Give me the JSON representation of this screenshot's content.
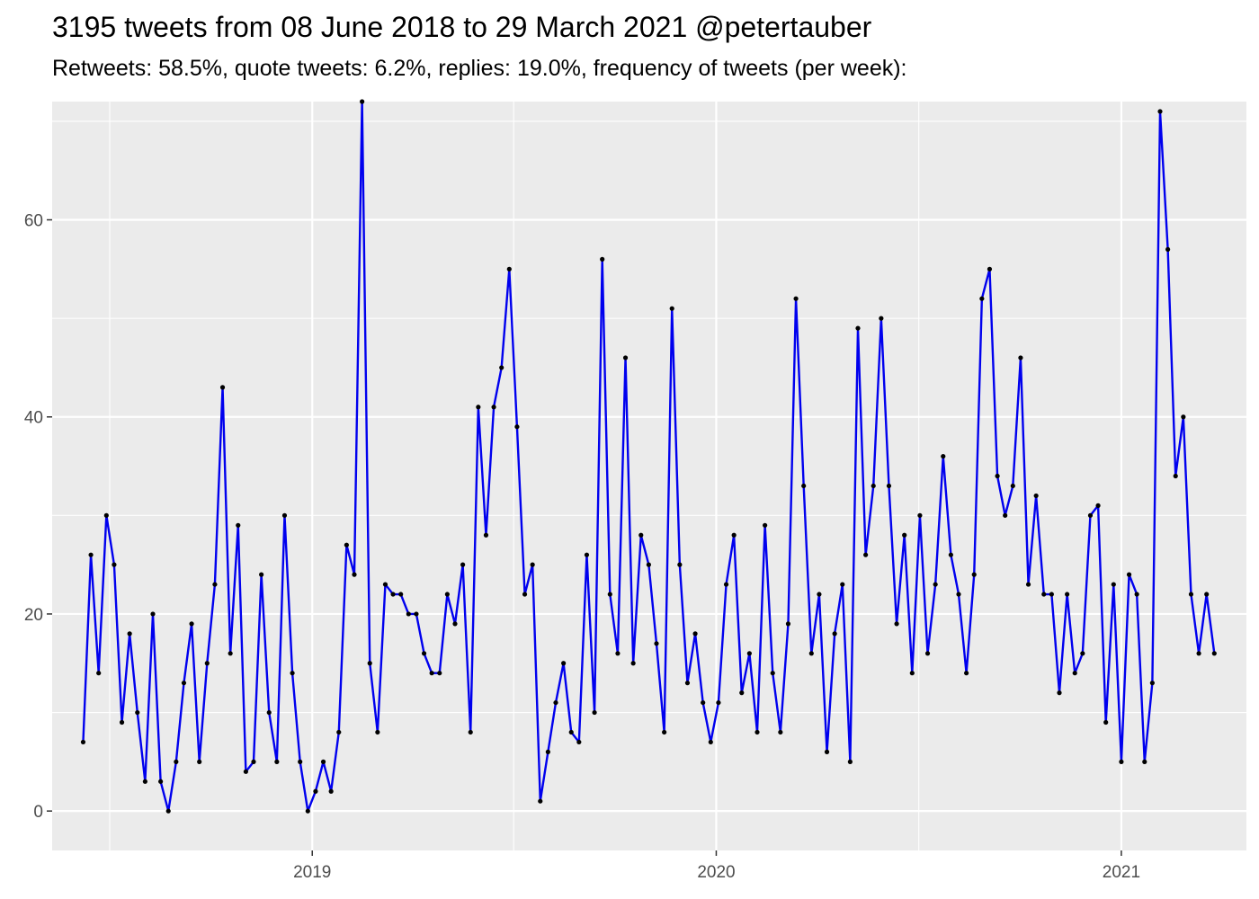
{
  "chart_data": {
    "type": "line",
    "title": "3195 tweets from 08 June 2018 to 29 March 2021 @petertauber",
    "subtitle": "Retweets: 58.5%, quote tweets: 6.2%, replies: 19.0%, frequency of tweets (per week):",
    "xlabel": "",
    "ylabel": "",
    "x_start": "2018-06-08",
    "x_step_days": 7,
    "xlim": [
      "2018-05-11",
      "2021-04-24"
    ],
    "ylim": [
      -4,
      72
    ],
    "x_ticks": [
      {
        "date": "2019-01-01",
        "label": "2019"
      },
      {
        "date": "2020-01-01",
        "label": "2020"
      },
      {
        "date": "2021-01-01",
        "label": "2021"
      }
    ],
    "x_minor_ticks": [
      "2018-07-02",
      "2019-07-02",
      "2020-07-02"
    ],
    "y_ticks": [
      0,
      20,
      40,
      60
    ],
    "y_minor_ticks": [
      10,
      30,
      50,
      70
    ],
    "grid": true,
    "line_color": "#0000EE",
    "point_color": "#000000",
    "panel_color": "#EBEBEB",
    "series": [
      {
        "values": [
          7,
          26,
          14,
          30,
          25,
          9,
          18,
          10,
          3,
          20,
          3,
          0,
          5,
          13,
          19,
          5,
          15,
          23,
          43,
          16,
          29,
          4,
          5,
          24,
          10,
          5,
          30,
          14,
          5,
          0,
          2,
          5,
          2,
          8,
          27,
          24,
          72,
          15,
          8,
          23,
          22,
          22,
          20,
          20,
          16,
          14,
          14,
          22,
          19,
          25,
          8,
          41,
          28,
          41,
          45,
          55,
          39,
          22,
          25,
          1,
          6,
          11,
          15,
          8,
          7,
          26,
          10,
          56,
          22,
          16,
          46,
          15,
          28,
          25,
          17,
          8,
          51,
          25,
          13,
          18,
          11,
          7,
          11,
          23,
          28,
          12,
          16,
          8,
          29,
          14,
          8,
          19,
          52,
          33,
          16,
          22,
          6,
          18,
          23,
          5,
          49,
          26,
          33,
          50,
          33,
          19,
          28,
          14,
          30,
          16,
          23,
          36,
          26,
          22,
          14,
          24,
          52,
          55,
          34,
          30,
          33,
          46,
          23,
          32,
          22,
          22,
          12,
          22,
          14,
          16,
          30,
          31,
          9,
          23,
          5,
          24,
          22,
          5,
          13,
          71,
          57,
          34,
          40,
          22,
          16,
          22,
          16
        ]
      }
    ]
  }
}
